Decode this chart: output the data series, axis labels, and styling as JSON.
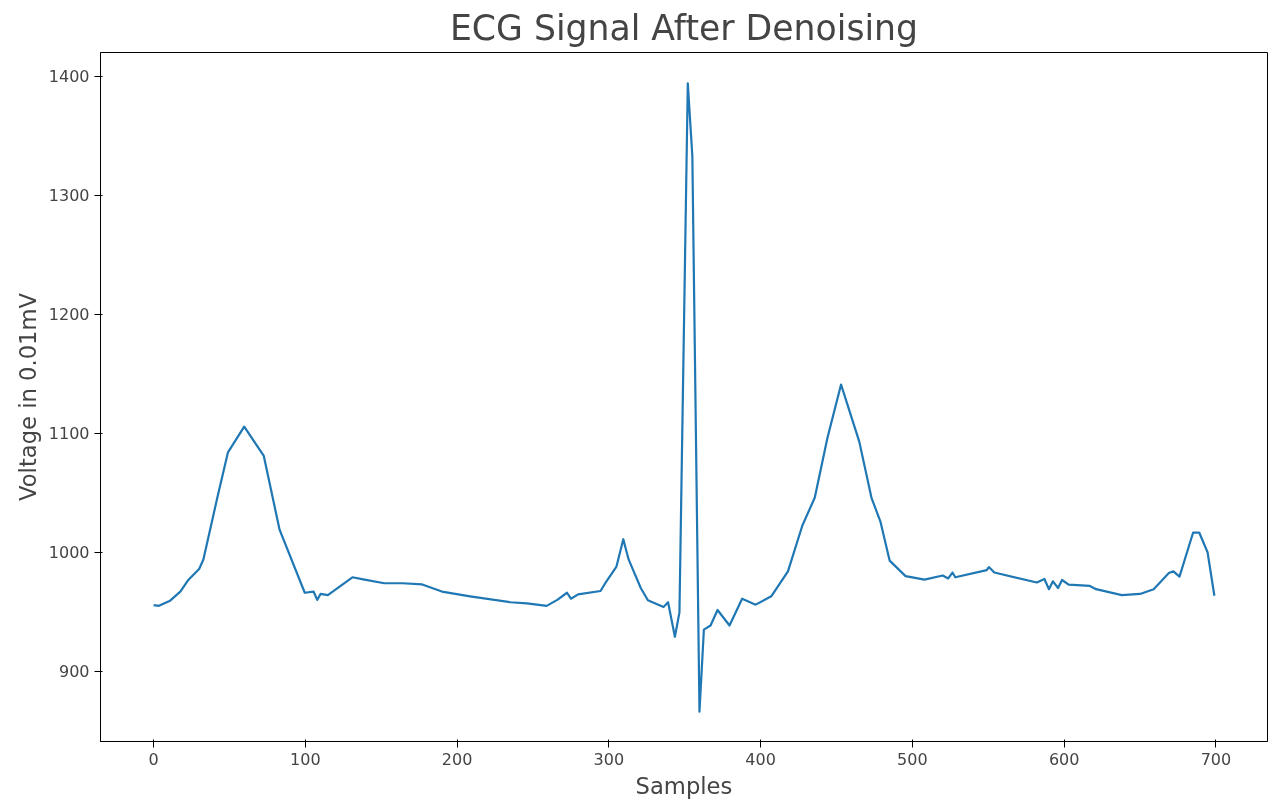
{
  "chart_data": {
    "type": "line",
    "title": "ECG Signal After Denoising",
    "xlabel": "Samples",
    "ylabel": "Voltage in 0.01mV",
    "xlim": [
      -35,
      734
    ],
    "ylim": [
      841,
      1420
    ],
    "xticks": [
      0,
      100,
      200,
      300,
      400,
      500,
      600,
      700
    ],
    "yticks": [
      900,
      1000,
      1100,
      1200,
      1300,
      1400
    ],
    "grid": false,
    "series": [
      {
        "color": "#1f77b4",
        "x": [
          0,
          3.5,
          10.5,
          17.6,
          23,
          30,
          32.8,
          42,
          49,
          59.7,
          72.6,
          83,
          99.6,
          105.4,
          107.8,
          110,
          114.8,
          131,
          139,
          152,
          164,
          177,
          190,
          208.5,
          235,
          246,
          259,
          266,
          272.4,
          275,
          279.7,
          294.5,
          297.6,
          305,
          309.5,
          313,
          321,
          325.7,
          336,
          339,
          343.5,
          346.5,
          352,
          355,
          359.7,
          362.6,
          367,
          371.6,
          379.5,
          387.8,
          396.7,
          407,
          418,
          427.5,
          435.7,
          444,
          453,
          458,
          465,
          473,
          479,
          485,
          495.5,
          508,
          520,
          523.6,
          526.4,
          528.3,
          549,
          550.4,
          554,
          582,
          587,
          590,
          592.6,
          596,
          598.6,
          603,
          617,
          621,
          638,
          650,
          659,
          669,
          672,
          676,
          685,
          689,
          694.5,
          699
        ],
        "values": [
          955.6,
          955,
          959,
          967,
          977,
          986,
          994,
          1046,
          1084,
          1105.6,
          1081,
          1019,
          966,
          967,
          960,
          965,
          964,
          979,
          977,
          974,
          974,
          973,
          967,
          963,
          958,
          957,
          955,
          960,
          966,
          961,
          964.6,
          967.5,
          974,
          988,
          1011,
          994,
          970,
          959.7,
          954,
          958,
          929,
          949.5,
          1394,
          1333,
          866,
          935,
          938.5,
          951.5,
          938.5,
          961,
          956,
          963,
          984,
          1022.5,
          1046,
          1096,
          1141,
          1121,
          1093,
          1046,
          1025.5,
          993,
          980,
          977,
          980.5,
          978,
          983,
          979,
          985,
          987.6,
          983,
          974.6,
          977.6,
          969,
          975.6,
          970,
          976.7,
          972.8,
          971.7,
          969,
          964,
          965,
          969,
          982.6,
          984,
          979.6,
          1016.6,
          1016.6,
          1000,
          963.5
        ]
      }
    ]
  }
}
